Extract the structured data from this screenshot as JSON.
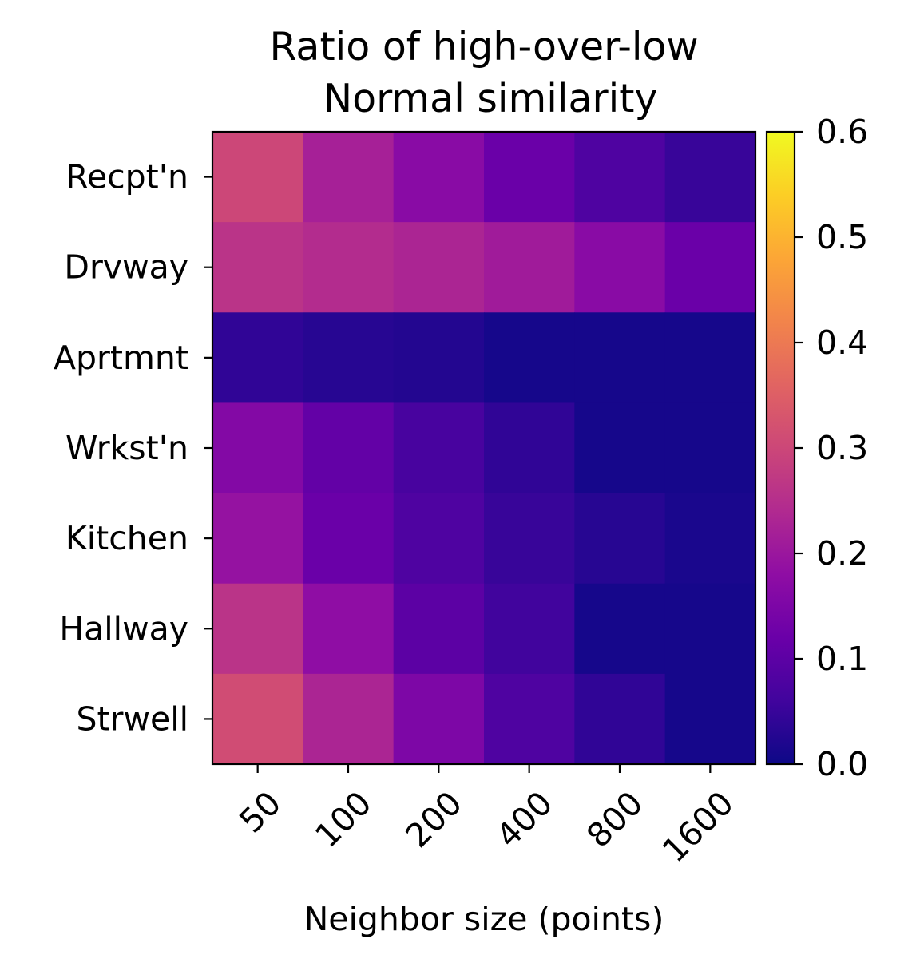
{
  "chart_data": {
    "type": "heatmap",
    "title_lines": [
      "Ratio of high-over-low",
      "Normal similarity"
    ],
    "xlabel": "Neighbor size (points)",
    "ylabel": "",
    "x_categories": [
      "50",
      "100",
      "200",
      "400",
      "800",
      "1600"
    ],
    "y_categories": [
      "Recpt'n",
      "Drvway",
      "Aprtmnt",
      "Wrkst'n",
      "Kitchen",
      "Hallway",
      "Strwell"
    ],
    "values": [
      [
        0.3,
        0.22,
        0.17,
        0.12,
        0.08,
        0.05
      ],
      [
        0.26,
        0.245,
        0.23,
        0.21,
        0.17,
        0.12
      ],
      [
        0.04,
        0.03,
        0.025,
        0.01,
        0.01,
        0.01
      ],
      [
        0.16,
        0.11,
        0.07,
        0.04,
        0.01,
        0.01
      ],
      [
        0.19,
        0.12,
        0.08,
        0.05,
        0.03,
        0.015
      ],
      [
        0.26,
        0.18,
        0.1,
        0.06,
        0.01,
        0.01
      ],
      [
        0.31,
        0.23,
        0.15,
        0.08,
        0.04,
        0.01
      ]
    ],
    "colorbar": {
      "colormap": "plasma",
      "range": [
        0.0,
        0.6
      ],
      "ticks": [
        0.0,
        0.1,
        0.2,
        0.3,
        0.4,
        0.5,
        0.6
      ],
      "tick_labels": [
        "0.0",
        "0.1",
        "0.2",
        "0.3",
        "0.4",
        "0.5",
        "0.6"
      ]
    },
    "grid": false
  }
}
